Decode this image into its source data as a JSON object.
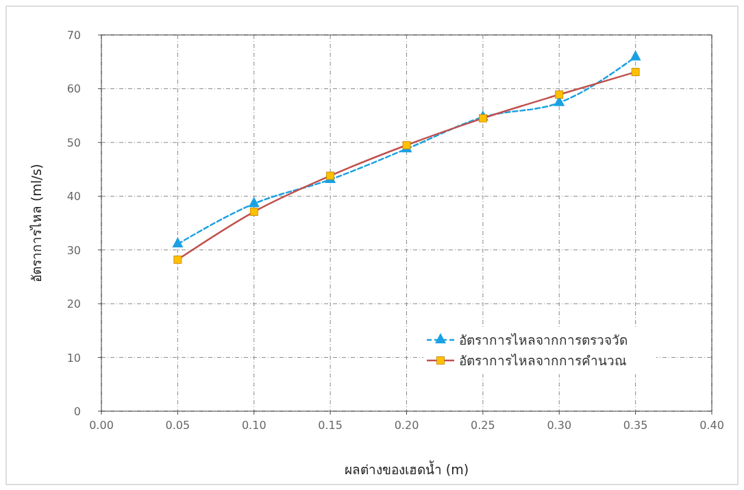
{
  "chart_data": {
    "type": "line",
    "xlabel": "ผลต่างของเฮดน้ำ (m)",
    "ylabel": "อัตราการไหล (ml/s)",
    "x": [
      0.05,
      0.1,
      0.15,
      0.2,
      0.25,
      0.3,
      0.35
    ],
    "series": [
      {
        "name": "อัตราการไหลจากการตรวจวัด",
        "color": "#1ba1e2",
        "values": [
          31.1,
          38.6,
          43.1,
          48.8,
          54.7,
          57.4,
          65.9
        ],
        "marker": "triangle",
        "line_style": "dashed"
      },
      {
        "name": "อัตราการไหลจากการคำนวณ",
        "color": "#c0504d",
        "values": [
          28.2,
          37.1,
          43.8,
          49.5,
          54.5,
          58.9,
          63.1
        ],
        "marker": "square",
        "line_style": "solid"
      }
    ],
    "xlim": [
      0,
      0.4
    ],
    "xticks": [
      {
        "value": 0,
        "label": "0.00"
      },
      {
        "value": 0.05,
        "label": "0.05"
      },
      {
        "value": 0.1,
        "label": "0.10"
      },
      {
        "value": 0.15,
        "label": "0.15"
      },
      {
        "value": 0.2,
        "label": "0.20"
      },
      {
        "value": 0.25,
        "label": "0.25"
      },
      {
        "value": 0.3,
        "label": "0.30"
      },
      {
        "value": 0.35,
        "label": "0.35"
      },
      {
        "value": 0.4,
        "label": "0.40"
      }
    ],
    "ylim": [
      0,
      70
    ],
    "yticks": [
      0,
      10,
      20,
      30,
      40,
      50,
      60,
      70
    ],
    "grid": true,
    "legend": "bottom right"
  }
}
